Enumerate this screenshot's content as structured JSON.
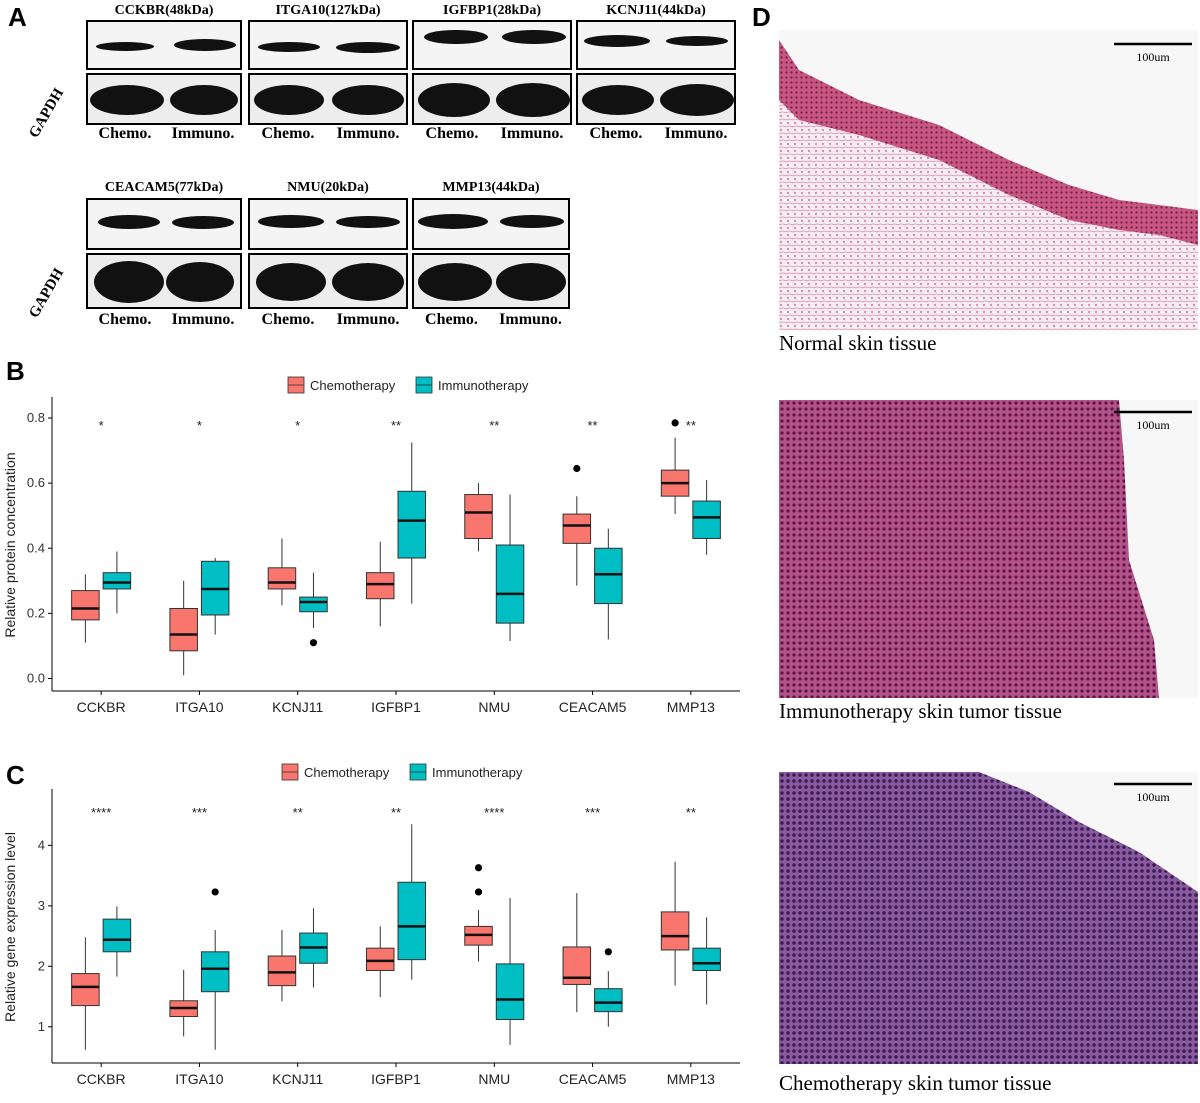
{
  "panels": {
    "a": "A",
    "b": "B",
    "c": "C",
    "d": "D"
  },
  "blots": {
    "loading_control": "GAPDH",
    "lane_labels": [
      "Chemo.",
      "Immuno."
    ],
    "row1": [
      "CCKBR(48kDa)",
      "ITGA10(127kDa)",
      "IGFBP1(28kDa)",
      "KCNJ11(44kDa)"
    ],
    "row2": [
      "CEACAM5(77kDa)",
      "NMU(20kDa)",
      "MMP13(44kDa)"
    ]
  },
  "histology": {
    "scale_bar": "100um",
    "captions": [
      "Normal skin tissue",
      "Immunotherapy skin tumor tissue",
      "Chemotherapy skin tumor tissue"
    ]
  },
  "colors": {
    "chemotherapy": "#F8766D",
    "immunotherapy": "#00BFC4"
  },
  "chart_data": [
    {
      "type": "boxplot",
      "ylabel": "Relative protein concentration",
      "xlabel": "",
      "ylim": [
        -0.02,
        0.84
      ],
      "yticks": [
        "0.0",
        "0.2",
        "0.4",
        "0.6",
        "0.8"
      ],
      "ytick_values": [
        0,
        0.2,
        0.4,
        0.6,
        0.8
      ],
      "legend": {
        "placement": "top",
        "entries": [
          "Chemotherapy",
          "Immunotherapy"
        ]
      },
      "categories": [
        "CCKBR",
        "ITGA10",
        "KCNJ11",
        "IGFBP1",
        "NMU",
        "CEACAM5",
        "MMP13"
      ],
      "significance": [
        "*",
        "*",
        "*",
        "**",
        "**",
        "**",
        "**"
      ],
      "series": [
        {
          "name": "Chemotherapy",
          "boxes": [
            {
              "min": 0.11,
              "q1": 0.18,
              "median": 0.215,
              "q3": 0.27,
              "max": 0.32,
              "outliers": []
            },
            {
              "min": 0.01,
              "q1": 0.085,
              "median": 0.135,
              "q3": 0.215,
              "max": 0.3,
              "outliers": []
            },
            {
              "min": 0.225,
              "q1": 0.275,
              "median": 0.295,
              "q3": 0.34,
              "max": 0.43,
              "outliers": []
            },
            {
              "min": 0.16,
              "q1": 0.245,
              "median": 0.29,
              "q3": 0.325,
              "max": 0.42,
              "outliers": []
            },
            {
              "min": 0.39,
              "q1": 0.43,
              "median": 0.51,
              "q3": 0.565,
              "max": 0.6,
              "outliers": []
            },
            {
              "min": 0.285,
              "q1": 0.415,
              "median": 0.47,
              "q3": 0.505,
              "max": 0.56,
              "outliers": [
                0.645
              ]
            },
            {
              "min": 0.505,
              "q1": 0.56,
              "median": 0.6,
              "q3": 0.64,
              "max": 0.74,
              "outliers": [
                0.785
              ]
            }
          ]
        },
        {
          "name": "Immunotherapy",
          "boxes": [
            {
              "min": 0.2,
              "q1": 0.275,
              "median": 0.295,
              "q3": 0.325,
              "max": 0.39,
              "outliers": []
            },
            {
              "min": 0.135,
              "q1": 0.195,
              "median": 0.275,
              "q3": 0.36,
              "max": 0.37,
              "outliers": []
            },
            {
              "min": 0.155,
              "q1": 0.205,
              "median": 0.235,
              "q3": 0.25,
              "max": 0.325,
              "outliers": [
                0.11
              ]
            },
            {
              "min": 0.23,
              "q1": 0.37,
              "median": 0.485,
              "q3": 0.575,
              "max": 0.725,
              "outliers": []
            },
            {
              "min": 0.115,
              "q1": 0.17,
              "median": 0.26,
              "q3": 0.41,
              "max": 0.565,
              "outliers": []
            },
            {
              "min": 0.12,
              "q1": 0.23,
              "median": 0.32,
              "q3": 0.4,
              "max": 0.46,
              "outliers": []
            },
            {
              "min": 0.38,
              "q1": 0.43,
              "median": 0.495,
              "q3": 0.545,
              "max": 0.61,
              "outliers": []
            }
          ]
        }
      ]
    },
    {
      "type": "boxplot",
      "ylabel": "Relative gene expression level",
      "xlabel": "",
      "ylim": [
        0.5,
        4.8
      ],
      "yticks": [
        "1",
        "2",
        "3",
        "4"
      ],
      "ytick_values": [
        1,
        2,
        3,
        4
      ],
      "legend": {
        "placement": "top",
        "entries": [
          "Chemotherapy",
          "Immunotherapy"
        ]
      },
      "categories": [
        "CCKBR",
        "ITGA10",
        "KCNJ11",
        "IGFBP1",
        "NMU",
        "CEACAM5",
        "MMP13"
      ],
      "significance": [
        "****",
        "***",
        "**",
        "**",
        "****",
        "***",
        "**"
      ],
      "series": [
        {
          "name": "Chemotherapy",
          "boxes": [
            {
              "min": 0.62,
              "q1": 1.35,
              "median": 1.66,
              "q3": 1.88,
              "max": 2.48,
              "outliers": []
            },
            {
              "min": 0.84,
              "q1": 1.17,
              "median": 1.31,
              "q3": 1.43,
              "max": 1.94,
              "outliers": []
            },
            {
              "min": 1.42,
              "q1": 1.68,
              "median": 1.9,
              "q3": 2.17,
              "max": 2.6,
              "outliers": []
            },
            {
              "min": 1.49,
              "q1": 1.93,
              "median": 2.09,
              "q3": 2.3,
              "max": 2.66,
              "outliers": []
            },
            {
              "min": 2.08,
              "q1": 2.35,
              "median": 2.52,
              "q3": 2.66,
              "max": 2.93,
              "outliers": [
                3.23,
                3.63
              ]
            },
            {
              "min": 1.24,
              "q1": 1.7,
              "median": 1.81,
              "q3": 2.32,
              "max": 3.21,
              "outliers": []
            },
            {
              "min": 1.68,
              "q1": 2.27,
              "median": 2.5,
              "q3": 2.9,
              "max": 3.73,
              "outliers": []
            }
          ]
        },
        {
          "name": "Immunotherapy",
          "boxes": [
            {
              "min": 1.83,
              "q1": 2.24,
              "median": 2.44,
              "q3": 2.78,
              "max": 2.99,
              "outliers": []
            },
            {
              "min": 0.62,
              "q1": 1.58,
              "median": 1.96,
              "q3": 2.24,
              "max": 2.6,
              "outliers": [
                3.23
              ]
            },
            {
              "min": 1.65,
              "q1": 2.05,
              "median": 2.31,
              "q3": 2.55,
              "max": 2.96,
              "outliers": []
            },
            {
              "min": 1.78,
              "q1": 2.11,
              "median": 2.66,
              "q3": 3.39,
              "max": 4.35,
              "outliers": []
            },
            {
              "min": 0.7,
              "q1": 1.12,
              "median": 1.45,
              "q3": 2.04,
              "max": 3.13,
              "outliers": []
            },
            {
              "min": 1.0,
              "q1": 1.25,
              "median": 1.4,
              "q3": 1.63,
              "max": 1.92,
              "outliers": [
                2.24
              ]
            },
            {
              "min": 1.37,
              "q1": 1.93,
              "median": 2.05,
              "q3": 2.3,
              "max": 2.81,
              "outliers": []
            }
          ]
        }
      ]
    }
  ]
}
